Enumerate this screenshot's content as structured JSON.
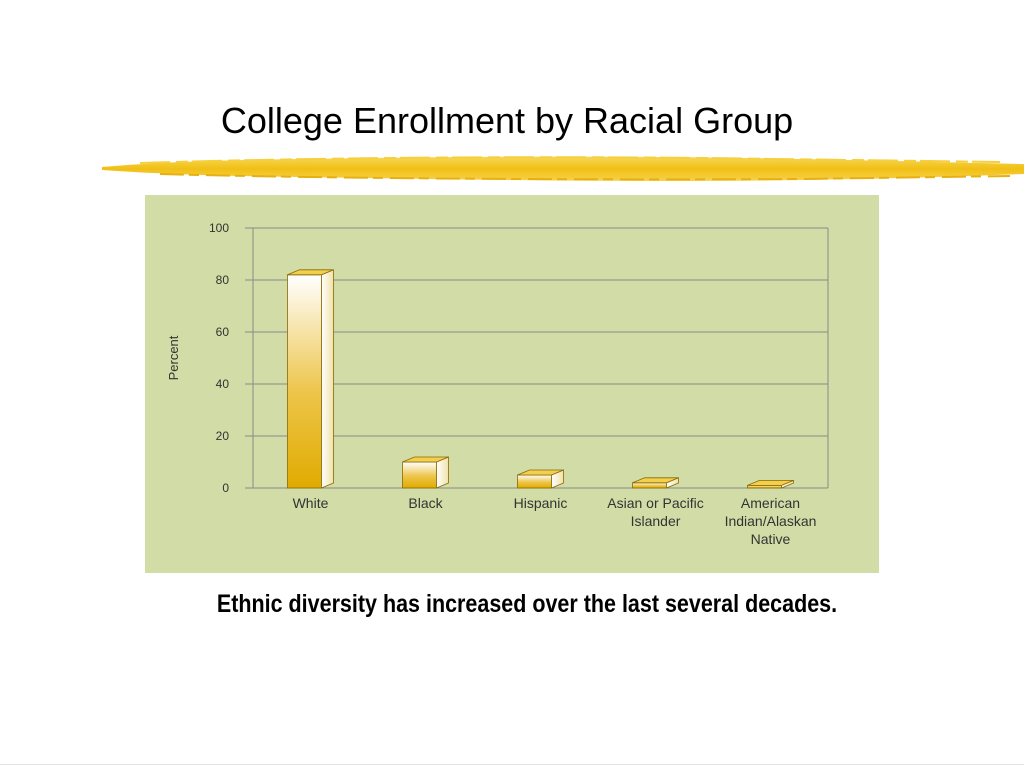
{
  "slide": {
    "title": "College Enrollment by Racial Group",
    "caption": "Ethnic diversity has increased over the last several decades."
  },
  "colors": {
    "brush": "#f3c21a",
    "panel": "#d1dca6",
    "bar_top": "#ffffff",
    "bar_bottom": "#e0ab00",
    "bar_edge": "#8a6a00"
  },
  "chart_data": {
    "type": "bar",
    "style": "3d",
    "title": "",
    "xlabel": "",
    "ylabel": "Percent",
    "ylim": [
      0,
      100
    ],
    "yticks": [
      "0",
      "20",
      "40",
      "60",
      "80",
      "100"
    ],
    "grid": true,
    "categories": [
      [
        "White"
      ],
      [
        "Black"
      ],
      [
        "Hispanic"
      ],
      [
        "Asian or Pacific",
        "Islander"
      ],
      [
        "American",
        "Indian/Alaskan",
        "Native"
      ]
    ],
    "series": [
      {
        "values": [
          82,
          10,
          5,
          2,
          1
        ]
      }
    ]
  }
}
